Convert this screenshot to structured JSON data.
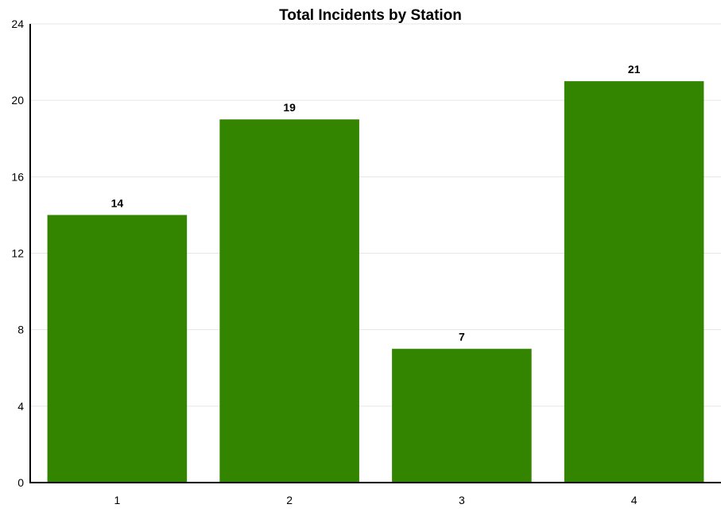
{
  "chart_data": {
    "type": "bar",
    "title": "Total Incidents by Station",
    "categories": [
      "1",
      "2",
      "3",
      "4"
    ],
    "values": [
      14,
      19,
      7,
      21
    ],
    "data_labels": [
      "14",
      "19",
      "7",
      "21"
    ],
    "ylim": [
      0,
      24
    ],
    "yticks": [
      "0",
      "4",
      "8",
      "12",
      "16",
      "20",
      "24"
    ],
    "grid": true,
    "bar_color": "#338500",
    "gridline_color": "#e6e6e6",
    "axis_color": "#000000"
  }
}
